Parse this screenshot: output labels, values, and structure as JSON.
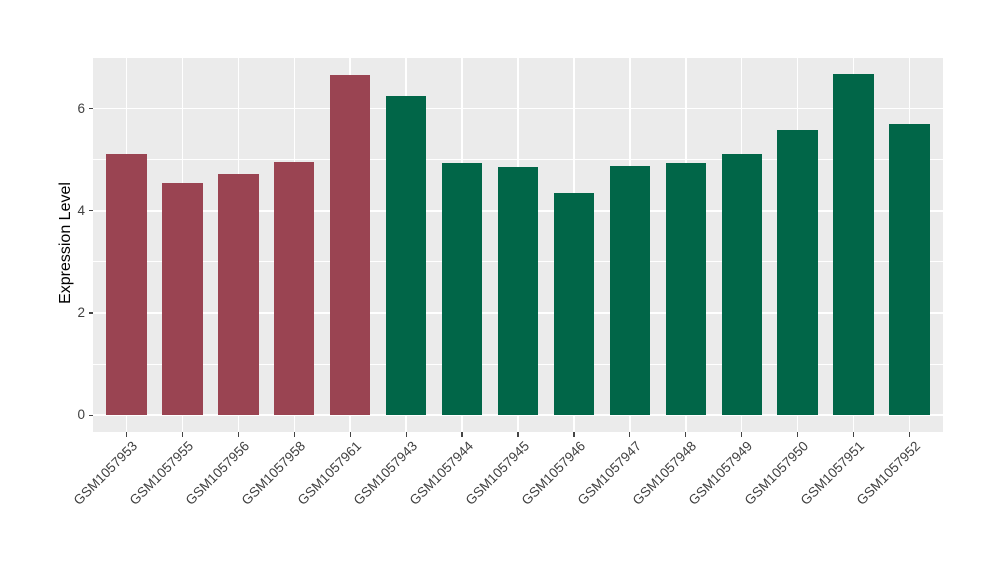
{
  "chart_data": {
    "type": "bar",
    "title": "",
    "xlabel": "",
    "ylabel": "Expression Level",
    "categories": [
      "GSM1057953",
      "GSM1057955",
      "GSM1057956",
      "GSM1057958",
      "GSM1057961",
      "GSM1057943",
      "GSM1057944",
      "GSM1057945",
      "GSM1057946",
      "GSM1057947",
      "GSM1057948",
      "GSM1057949",
      "GSM1057950",
      "GSM1057951",
      "GSM1057952"
    ],
    "values": [
      5.12,
      4.55,
      4.72,
      4.96,
      6.65,
      6.25,
      4.94,
      4.86,
      4.34,
      4.87,
      4.93,
      5.12,
      5.58,
      6.67,
      5.7
    ],
    "bar_groups": [
      "maroon",
      "maroon",
      "maroon",
      "maroon",
      "maroon",
      "green",
      "green",
      "green",
      "green",
      "green",
      "green",
      "green",
      "green",
      "green",
      "green"
    ],
    "group_colors": {
      "maroon": "#9A4452",
      "green": "#016648"
    },
    "yticks": [
      0,
      2,
      4,
      6
    ],
    "minor_yticks": [
      1,
      3,
      5,
      7
    ],
    "ylim": [
      -0.33,
      7.01
    ],
    "grid": "on",
    "legend_position": "none",
    "colors": {
      "plot_bg": "#EBEBEB",
      "grid_major": "#FFFFFF",
      "grid_minor": "#FFFFFF",
      "tick_mark": "#454545",
      "tick_label": "#404040",
      "axis_title": "#000000",
      "figure_bg": "#FFFFFF"
    }
  }
}
